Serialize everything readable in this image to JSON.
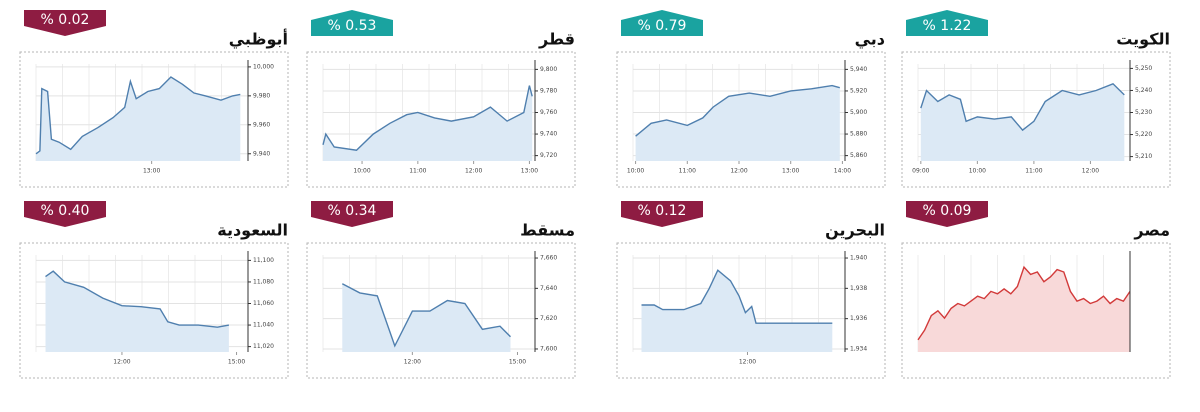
{
  "chart_data": [
    {
      "type": "line",
      "title": "أبوظبي",
      "change": {
        "value": 0.02,
        "label": "% 0.02"
      },
      "direction": "down",
      "badge_color": "#8e1c42",
      "color": "#4f7fae",
      "fill": "#dce9f5",
      "grid": true,
      "x": [
        10.0,
        10.1,
        10.15,
        10.3,
        10.4,
        10.6,
        10.9,
        11.2,
        11.6,
        12.0,
        12.3,
        12.45,
        12.6,
        12.9,
        13.2,
        13.5,
        13.8,
        14.1,
        14.4,
        14.8,
        15.1,
        15.3
      ],
      "values": [
        9940,
        9942,
        9985,
        9983,
        9950,
        9948,
        9943,
        9952,
        9958,
        9965,
        9972,
        9990,
        9978,
        9983,
        9985,
        9993,
        9988,
        9982,
        9980,
        9977,
        9980,
        9981
      ],
      "xlim": [
        10,
        15.5
      ],
      "xticks": [
        {
          "value": 13,
          "label": "13:00"
        }
      ],
      "ylim": [
        9935,
        10002
      ],
      "yticks": [
        {
          "value": 10000,
          "label": "10,000"
        },
        {
          "value": 9980,
          "label": "9,980"
        },
        {
          "value": 9960,
          "label": "9,960"
        },
        {
          "value": 9940,
          "label": "9,940"
        }
      ]
    },
    {
      "type": "line",
      "title": "قطر",
      "change": {
        "value": 0.53,
        "label": "% 0.53"
      },
      "direction": "up",
      "badge_color": "#1aa3a0",
      "color": "#4f7fae",
      "fill": "#dce9f5",
      "grid": true,
      "x": [
        9.3,
        9.35,
        9.5,
        9.9,
        10.2,
        10.5,
        10.8,
        11.0,
        11.3,
        11.6,
        12.0,
        12.3,
        12.6,
        12.9,
        13.0,
        13.05
      ],
      "values": [
        9730,
        9740,
        9728,
        9725,
        9740,
        9750,
        9758,
        9760,
        9755,
        9752,
        9756,
        9765,
        9752,
        9760,
        9785,
        9775
      ],
      "xlim": [
        9.3,
        13.1
      ],
      "xticks": [
        {
          "value": 10,
          "label": "10:00"
        },
        {
          "value": 11,
          "label": "11:00"
        },
        {
          "value": 12,
          "label": "12:00"
        },
        {
          "value": 13,
          "label": "13:00"
        }
      ],
      "ylim": [
        9715,
        9805
      ],
      "yticks": [
        {
          "value": 9800,
          "label": "9,800"
        },
        {
          "value": 9780,
          "label": "9,780"
        },
        {
          "value": 9760,
          "label": "9,760"
        },
        {
          "value": 9740,
          "label": "9,740"
        },
        {
          "value": 9720,
          "label": "9,720"
        }
      ]
    },
    {
      "type": "line",
      "title": "دبي",
      "change": {
        "value": 0.79,
        "label": "% 0.79"
      },
      "direction": "up",
      "badge_color": "#1aa3a0",
      "color": "#4f7fae",
      "fill": "#dce9f5",
      "grid": true,
      "x": [
        10.0,
        10.3,
        10.6,
        11.0,
        11.3,
        11.5,
        11.8,
        12.2,
        12.6,
        13.0,
        13.4,
        13.8,
        13.95
      ],
      "values": [
        5878,
        5890,
        5893,
        5888,
        5895,
        5905,
        5915,
        5918,
        5915,
        5920,
        5922,
        5925,
        5923
      ],
      "xlim": [
        9.95,
        14.05
      ],
      "xticks": [
        {
          "value": 10,
          "label": "10:00"
        },
        {
          "value": 11,
          "label": "11:00"
        },
        {
          "value": 12,
          "label": "12:00"
        },
        {
          "value": 13,
          "label": "13:00"
        },
        {
          "value": 14,
          "label": "14:00"
        }
      ],
      "ylim": [
        5855,
        5945
      ],
      "yticks": [
        {
          "value": 5940,
          "label": "5,940"
        },
        {
          "value": 5920,
          "label": "5,920"
        },
        {
          "value": 5900,
          "label": "5,900"
        },
        {
          "value": 5880,
          "label": "5,880"
        },
        {
          "value": 5860,
          "label": "5,860"
        }
      ]
    },
    {
      "type": "line",
      "title": "الكويت",
      "change": {
        "value": 1.22,
        "label": "% 1.22"
      },
      "direction": "up",
      "badge_color": "#1aa3a0",
      "color": "#4f7fae",
      "fill": "#dce9f5",
      "grid": true,
      "x": [
        9.0,
        9.1,
        9.3,
        9.5,
        9.7,
        9.8,
        10.0,
        10.3,
        10.6,
        10.8,
        11.0,
        11.2,
        11.5,
        11.8,
        12.1,
        12.4,
        12.6
      ],
      "values": [
        5232,
        5240,
        5235,
        5238,
        5236,
        5226,
        5228,
        5227,
        5228,
        5222,
        5226,
        5235,
        5240,
        5238,
        5240,
        5243,
        5238
      ],
      "xlim": [
        8.95,
        12.7
      ],
      "xticks": [
        {
          "value": 9,
          "label": "09:00"
        },
        {
          "value": 10,
          "label": "10:00"
        },
        {
          "value": 11,
          "label": "11:00"
        },
        {
          "value": 12,
          "label": "12:00"
        }
      ],
      "ylim": [
        5208,
        5252
      ],
      "yticks": [
        {
          "value": 5250,
          "label": "5,250"
        },
        {
          "value": 5240,
          "label": "5,240"
        },
        {
          "value": 5230,
          "label": "5,230"
        },
        {
          "value": 5220,
          "label": "5,220"
        },
        {
          "value": 5210,
          "label": "5,210"
        }
      ]
    },
    {
      "type": "line",
      "title": "السعودية",
      "change": {
        "value": 0.4,
        "label": "% 0.40"
      },
      "direction": "down",
      "badge_color": "#8e1c42",
      "color": "#4f7fae",
      "fill": "#dce9f5",
      "grid": true,
      "x": [
        10.0,
        10.2,
        10.5,
        11.0,
        11.5,
        12.0,
        12.5,
        13.0,
        13.2,
        13.5,
        14.0,
        14.5,
        14.8
      ],
      "values": [
        11085,
        11090,
        11080,
        11075,
        11065,
        11058,
        11057,
        11055,
        11043,
        11040,
        11040,
        11038,
        11040
      ],
      "xlim": [
        9.75,
        15.3
      ],
      "xticks": [
        {
          "value": 12,
          "label": "12:00"
        },
        {
          "value": 15,
          "label": "15:00"
        }
      ],
      "ylim": [
        11015,
        11105
      ],
      "yticks": [
        {
          "value": 11100,
          "label": "11,100"
        },
        {
          "value": 11080,
          "label": "11,080"
        },
        {
          "value": 11060,
          "label": "11,060"
        },
        {
          "value": 11040,
          "label": "11,040"
        },
        {
          "value": 11020,
          "label": "11,020"
        }
      ]
    },
    {
      "type": "line",
      "title": "مسقط",
      "change": {
        "value": 0.34,
        "label": "% 0.34"
      },
      "direction": "down",
      "badge_color": "#8e1c42",
      "color": "#4f7fae",
      "fill": "#dce9f5",
      "grid": true,
      "x": [
        10.0,
        10.5,
        11.0,
        11.5,
        12.0,
        12.5,
        13.0,
        13.5,
        14.0,
        14.5,
        14.8
      ],
      "values": [
        7643,
        7637,
        7635,
        7602,
        7625,
        7625,
        7632,
        7630,
        7613,
        7615,
        7608
      ],
      "xlim": [
        9.45,
        15.5
      ],
      "xticks": [
        {
          "value": 12,
          "label": "12:00"
        },
        {
          "value": 15,
          "label": "15:00"
        }
      ],
      "ylim": [
        7598,
        7662
      ],
      "yticks": [
        {
          "value": 7660,
          "label": "7,660"
        },
        {
          "value": 7640,
          "label": "7,640"
        },
        {
          "value": 7620,
          "label": "7,620"
        },
        {
          "value": 7600,
          "label": "7,600"
        }
      ]
    },
    {
      "type": "line",
      "title": "البحرين",
      "change": {
        "value": 0.12,
        "label": "% 0.12"
      },
      "direction": "down",
      "badge_color": "#8e1c42",
      "color": "#4f7fae",
      "fill": "#dce9f5",
      "grid": true,
      "x": [
        9.5,
        9.8,
        10.0,
        10.5,
        10.9,
        11.1,
        11.3,
        11.6,
        11.8,
        11.95,
        12.1,
        12.2,
        13.0,
        14.0
      ],
      "values": [
        1936.9,
        1936.9,
        1936.6,
        1936.6,
        1937.0,
        1938.0,
        1939.2,
        1938.5,
        1937.5,
        1936.4,
        1936.8,
        1935.7,
        1935.7,
        1935.7
      ],
      "xlim": [
        9.3,
        14.3
      ],
      "xticks": [
        {
          "value": 12,
          "label": "12:00"
        }
      ],
      "ylim": [
        1933.8,
        1940.2
      ],
      "yticks": [
        {
          "value": 1940,
          "label": "1,940"
        },
        {
          "value": 1938,
          "label": "1,938"
        },
        {
          "value": 1936,
          "label": "1,936"
        },
        {
          "value": 1934,
          "label": "1,934"
        }
      ]
    },
    {
      "type": "line",
      "title": "مصر",
      "change": {
        "value": 0.09,
        "label": "% 0.09"
      },
      "direction": "down",
      "badge_color": "#8e1c42",
      "color": "#d23a3a",
      "fill": "#f8d9d9",
      "grid": true,
      "values": [
        20,
        24,
        30,
        32,
        29,
        33,
        35,
        34,
        36,
        38,
        37,
        40,
        39,
        41,
        39,
        42,
        50,
        47,
        48,
        44,
        46,
        49,
        48,
        40,
        36,
        37,
        35,
        36,
        38,
        35,
        37,
        36,
        40
      ],
      "ylim": [
        15,
        55
      ],
      "yticks": []
    }
  ]
}
